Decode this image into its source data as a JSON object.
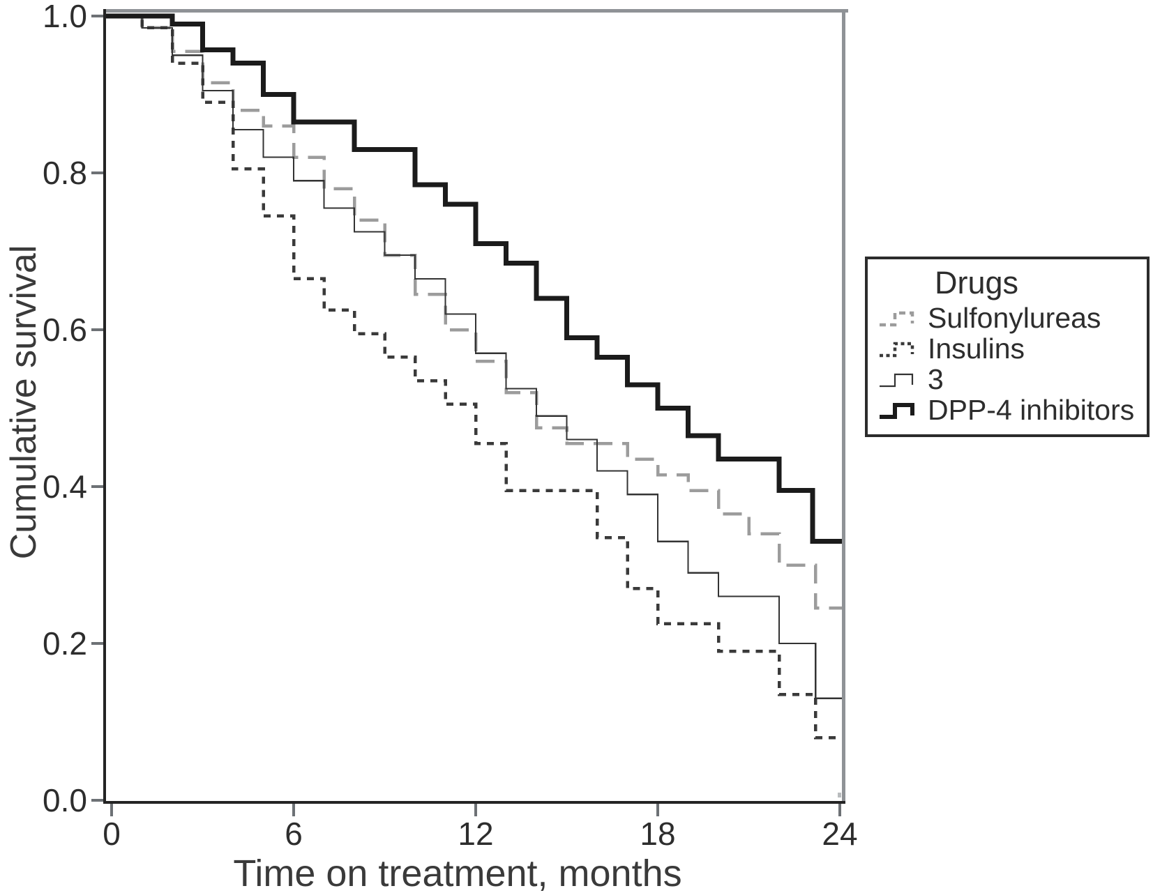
{
  "figure": {
    "kind": "Kaplan-Meier cumulative survival plot",
    "background": "#ffffff"
  },
  "colors": {
    "axis": "#242424",
    "border_gray": "#8f9296",
    "tick_gray": "#6d7175",
    "text": "#2d2d2d",
    "sulfonylureas": "#9c9c9c",
    "insulins": "#3a3a3a",
    "three": "#333333",
    "dpp4": "#1b1b1b"
  },
  "chart_data": {
    "type": "line",
    "subtype": "step-survival",
    "title": "",
    "xlabel": "Time on treatment, months",
    "ylabel": "Cumulative survival",
    "xlim": [
      0,
      24.2
    ],
    "ylim": [
      0.0,
      1.0
    ],
    "grid": false,
    "x_ticks": [
      {
        "t": 0,
        "label": "0"
      },
      {
        "t": 6,
        "label": "6"
      },
      {
        "t": 12,
        "label": "12"
      },
      {
        "t": 18,
        "label": "18"
      },
      {
        "t": 24,
        "label": "24"
      }
    ],
    "y_ticks": [
      {
        "v": 1.0,
        "label": "1.0"
      },
      {
        "v": 0.8,
        "label": "0.8"
      },
      {
        "v": 0.6,
        "label": "0.6"
      },
      {
        "v": 0.4,
        "label": "0.4"
      },
      {
        "v": 0.2,
        "label": "0.2"
      },
      {
        "v": 0.0,
        "label": "0.0"
      }
    ],
    "legend": {
      "title": "Drugs",
      "position": "right"
    },
    "series": [
      {
        "key": "sulfonylureas",
        "name": "Sulfonylureas",
        "color": "#9c9c9c",
        "line": "dashed",
        "width": 4.5,
        "dash": "27 14",
        "glyph_dash": "9 6",
        "start": [
          0,
          1.0
        ],
        "steps": [
          [
            1,
            0.985
          ],
          [
            2,
            0.955
          ],
          [
            3,
            0.915
          ],
          [
            4,
            0.88
          ],
          [
            5,
            0.86
          ],
          [
            6,
            0.82
          ],
          [
            7,
            0.78
          ],
          [
            8,
            0.74
          ],
          [
            9,
            0.695
          ],
          [
            10,
            0.645
          ],
          [
            11,
            0.6
          ],
          [
            12,
            0.56
          ],
          [
            13,
            0.52
          ],
          [
            14,
            0.475
          ],
          [
            15,
            0.455
          ],
          [
            17,
            0.435
          ],
          [
            18,
            0.415
          ],
          [
            19,
            0.395
          ],
          [
            20,
            0.365
          ],
          [
            21,
            0.34
          ],
          [
            22,
            0.3
          ],
          [
            23.2,
            0.245
          ]
        ],
        "end_value": 0.245
      },
      {
        "key": "insulins",
        "name": "Insulins",
        "color": "#3a3a3a",
        "line": "dotted",
        "width": 4.5,
        "dash": "10 9",
        "glyph_dash": "5 4.5",
        "start": [
          0,
          1.0
        ],
        "steps": [
          [
            1,
            0.985
          ],
          [
            2,
            0.94
          ],
          [
            3,
            0.89
          ],
          [
            4,
            0.805
          ],
          [
            5,
            0.745
          ],
          [
            6,
            0.665
          ],
          [
            7,
            0.625
          ],
          [
            8,
            0.595
          ],
          [
            9,
            0.565
          ],
          [
            10,
            0.535
          ],
          [
            11,
            0.505
          ],
          [
            12,
            0.455
          ],
          [
            13,
            0.395
          ],
          [
            16,
            0.335
          ],
          [
            17,
            0.27
          ],
          [
            18,
            0.225
          ],
          [
            20,
            0.19
          ],
          [
            22,
            0.135
          ],
          [
            23.2,
            0.08
          ]
        ],
        "end_value": 0.08
      },
      {
        "key": "three",
        "name": "3",
        "color": "#333333",
        "line": "solid",
        "width": 2.2,
        "dash": "",
        "glyph_dash": "",
        "start": [
          0,
          1.0
        ],
        "steps": [
          [
            1,
            0.985
          ],
          [
            2,
            0.95
          ],
          [
            3,
            0.905
          ],
          [
            4,
            0.855
          ],
          [
            5,
            0.82
          ],
          [
            6,
            0.79
          ],
          [
            7,
            0.755
          ],
          [
            8,
            0.725
          ],
          [
            9,
            0.695
          ],
          [
            10,
            0.665
          ],
          [
            11,
            0.62
          ],
          [
            12,
            0.57
          ],
          [
            13,
            0.525
          ],
          [
            14,
            0.49
          ],
          [
            15,
            0.46
          ],
          [
            16,
            0.42
          ],
          [
            17,
            0.39
          ],
          [
            18,
            0.33
          ],
          [
            19,
            0.29
          ],
          [
            20,
            0.26
          ],
          [
            22,
            0.2
          ],
          [
            23.2,
            0.13
          ]
        ],
        "end_value": 0.13
      },
      {
        "key": "dpp4",
        "name": "DPP-4 inhibitors",
        "color": "#1b1b1b",
        "line": "solid",
        "width": 7,
        "dash": "",
        "glyph_dash": "",
        "start": [
          0,
          1.0
        ],
        "steps": [
          [
            2,
            0.99
          ],
          [
            3,
            0.957
          ],
          [
            4,
            0.94
          ],
          [
            5,
            0.9
          ],
          [
            6,
            0.865
          ],
          [
            8,
            0.83
          ],
          [
            10,
            0.785
          ],
          [
            11,
            0.76
          ],
          [
            12,
            0.71
          ],
          [
            13,
            0.685
          ],
          [
            14,
            0.64
          ],
          [
            15,
            0.59
          ],
          [
            16,
            0.565
          ],
          [
            17,
            0.53
          ],
          [
            18,
            0.5
          ],
          [
            19,
            0.465
          ],
          [
            20,
            0.435
          ],
          [
            22,
            0.395
          ],
          [
            23.1,
            0.33
          ]
        ],
        "end_value": 0.33
      }
    ]
  }
}
